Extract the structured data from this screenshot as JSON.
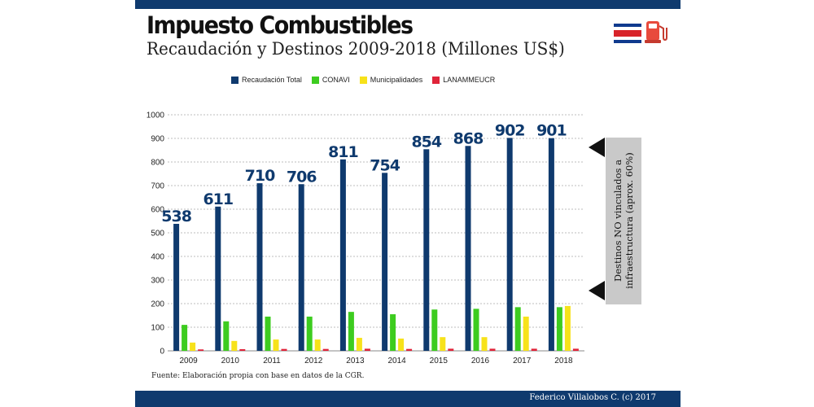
{
  "header": {
    "title": "Impuesto Combustibles",
    "subtitle": "Recaudación y Destinos 2009-2018 (Millones US$)"
  },
  "icons": [
    "costa-rica-flag-icon",
    "fuel-pump-icon"
  ],
  "colors": {
    "bar_brand": "#0f3a6e",
    "recaudacion": "#0f3a6e",
    "conavi": "#3dcc1f",
    "municipalidades": "#f7e21a",
    "lanamme": "#e0243a"
  },
  "chart_data": {
    "type": "bar",
    "categories": [
      "2009",
      "2010",
      "2011",
      "2012",
      "2013",
      "2014",
      "2015",
      "2016",
      "2017",
      "2018"
    ],
    "series": [
      {
        "name": "Recaudación Total",
        "values": [
          538,
          611,
          710,
          706,
          811,
          754,
          854,
          868,
          902,
          901
        ]
      },
      {
        "name": "CONAVI",
        "values": [
          110,
          125,
          145,
          145,
          165,
          155,
          175,
          178,
          185,
          185
        ]
      },
      {
        "name": "Municipalidades",
        "values": [
          35,
          42,
          48,
          48,
          55,
          52,
          58,
          58,
          145,
          190
        ]
      },
      {
        "name": "LANAMMEUCR",
        "values": [
          6,
          7,
          8,
          8,
          9,
          8,
          9,
          9,
          9,
          9
        ]
      }
    ],
    "data_labels": [
      "538",
      "611",
      "710",
      "706",
      "811",
      "754",
      "854",
      "868",
      "902",
      "901"
    ],
    "ylim": [
      0,
      1000
    ],
    "yticks": [
      "0",
      "100",
      "200",
      "300",
      "400",
      "500",
      "600",
      "700",
      "800",
      "900",
      "1000"
    ],
    "grid": true,
    "legend_position": "top"
  },
  "callout": {
    "text": "Destinos NO vinculados a infraestructura (aprox. 60%)"
  },
  "footer": {
    "source": "Fuente: Elaboración propia con base en datos de la CGR.",
    "credit": "Federico Villalobos  C. (c) 2017"
  }
}
